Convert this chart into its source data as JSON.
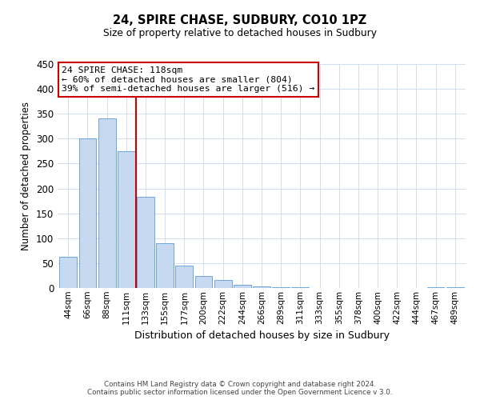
{
  "title": "24, SPIRE CHASE, SUDBURY, CO10 1PZ",
  "subtitle": "Size of property relative to detached houses in Sudbury",
  "xlabel": "Distribution of detached houses by size in Sudbury",
  "ylabel": "Number of detached properties",
  "bar_labels": [
    "44sqm",
    "66sqm",
    "88sqm",
    "111sqm",
    "133sqm",
    "155sqm",
    "177sqm",
    "200sqm",
    "222sqm",
    "244sqm",
    "266sqm",
    "289sqm",
    "311sqm",
    "333sqm",
    "355sqm",
    "378sqm",
    "400sqm",
    "422sqm",
    "444sqm",
    "467sqm",
    "489sqm"
  ],
  "bar_values": [
    62,
    301,
    340,
    275,
    184,
    90,
    45,
    24,
    16,
    7,
    4,
    1,
    1,
    0,
    0,
    0,
    0,
    0,
    0,
    1,
    1
  ],
  "bar_color": "#c6d9f0",
  "bar_edge_color": "#5b9bd5",
  "vline_x": 3.5,
  "vline_color": "#cc0000",
  "ylim": [
    0,
    450
  ],
  "yticks": [
    0,
    50,
    100,
    150,
    200,
    250,
    300,
    350,
    400,
    450
  ],
  "annotation_title": "24 SPIRE CHASE: 118sqm",
  "annotation_line1": "← 60% of detached houses are smaller (804)",
  "annotation_line2": "39% of semi-detached houses are larger (516) →",
  "annotation_box_edge": "#cc0000",
  "footer1": "Contains HM Land Registry data © Crown copyright and database right 2024.",
  "footer2": "Contains public sector information licensed under the Open Government Licence v 3.0.",
  "background_color": "#ffffff",
  "grid_color": "#c8d8ee"
}
